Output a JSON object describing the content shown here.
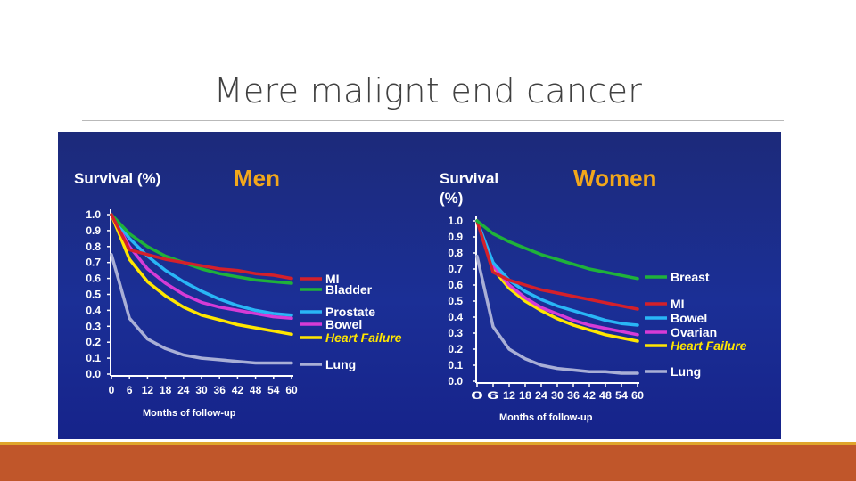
{
  "slide": {
    "title": "Mere malignt end cancer"
  },
  "colors": {
    "figure_bg": "#1b2a8a",
    "text": "#ffffff",
    "title_men": "#f2a71b",
    "footer": "#c0562a",
    "footer_accent": "#e0a52c"
  },
  "chart_data": [
    {
      "type": "line",
      "title": "Men",
      "ylabel": "Survival (%)",
      "xlabel": "Months of follow-up",
      "xlim": [
        0,
        60
      ],
      "ylim": [
        0,
        1.0
      ],
      "x_ticks": [
        "0",
        "6",
        "12",
        "18",
        "24",
        "30",
        "36",
        "42",
        "48",
        "54",
        "60"
      ],
      "y_ticks": [
        "1.0",
        "0.9",
        "0.8",
        "0.7",
        "0.6",
        "0.5",
        "0.4",
        "0.3",
        "0.2",
        "0.1",
        "0.0"
      ],
      "x": [
        0,
        6,
        12,
        18,
        24,
        30,
        36,
        42,
        48,
        54,
        60
      ],
      "series": [
        {
          "name": "MI",
          "color": "#d4202a",
          "values": [
            1.0,
            0.78,
            0.75,
            0.72,
            0.7,
            0.68,
            0.66,
            0.65,
            0.63,
            0.62,
            0.6
          ]
        },
        {
          "name": "Bladder",
          "color": "#1fb23a",
          "values": [
            1.0,
            0.88,
            0.8,
            0.74,
            0.7,
            0.66,
            0.63,
            0.61,
            0.59,
            0.58,
            0.57
          ]
        },
        {
          "name": "Prostate",
          "color": "#29b6f6",
          "values": [
            1.0,
            0.85,
            0.74,
            0.65,
            0.58,
            0.52,
            0.47,
            0.43,
            0.4,
            0.38,
            0.37
          ]
        },
        {
          "name": "Bowel",
          "color": "#d63bd6",
          "values": [
            1.0,
            0.8,
            0.66,
            0.57,
            0.5,
            0.45,
            0.42,
            0.4,
            0.38,
            0.36,
            0.35
          ]
        },
        {
          "name": "Heart Failure",
          "color": "#ffe600",
          "values": [
            1.0,
            0.72,
            0.58,
            0.49,
            0.42,
            0.37,
            0.34,
            0.31,
            0.29,
            0.27,
            0.25
          ]
        },
        {
          "name": "Lung",
          "color": "#a9afd6",
          "values": [
            0.75,
            0.35,
            0.22,
            0.16,
            0.12,
            0.1,
            0.09,
            0.08,
            0.07,
            0.07,
            0.07
          ]
        }
      ],
      "legend_emphasis": [
        "Heart Failure"
      ],
      "legend_placement": "right"
    },
    {
      "type": "line",
      "title": "Women",
      "ylabel": "Survival\n(%)",
      "xlabel": "Months of follow-up",
      "xlim": [
        0,
        60
      ],
      "ylim": [
        0,
        1.0
      ],
      "x_ticks": [
        "0",
        "6",
        "12",
        "18",
        "24",
        "30",
        "36",
        "42",
        "48",
        "54",
        "60"
      ],
      "x_tick_text": "0  6  121824303642485460",
      "y_ticks": [
        "1.0",
        "0.9",
        "0.8",
        "0.7",
        "0.6",
        "0.5",
        "0.4",
        "0.3",
        "0.2",
        "0.1",
        "0.0"
      ],
      "x": [
        0,
        6,
        12,
        18,
        24,
        30,
        36,
        42,
        48,
        54,
        60
      ],
      "series": [
        {
          "name": "Breast",
          "color": "#1fb23a",
          "values": [
            1.0,
            0.92,
            0.87,
            0.83,
            0.79,
            0.76,
            0.73,
            0.7,
            0.68,
            0.66,
            0.64
          ]
        },
        {
          "name": "MI",
          "color": "#d4202a",
          "values": [
            1.0,
            0.68,
            0.63,
            0.6,
            0.57,
            0.55,
            0.53,
            0.51,
            0.49,
            0.47,
            0.45
          ]
        },
        {
          "name": "Bowel",
          "color": "#29b6f6",
          "values": [
            1.0,
            0.74,
            0.63,
            0.56,
            0.51,
            0.47,
            0.44,
            0.41,
            0.38,
            0.36,
            0.35
          ]
        },
        {
          "name": "Ovarian",
          "color": "#d63bd6",
          "values": [
            1.0,
            0.72,
            0.6,
            0.52,
            0.46,
            0.42,
            0.38,
            0.35,
            0.33,
            0.31,
            0.29
          ]
        },
        {
          "name": "Heart Failure",
          "color": "#ffe600",
          "values": [
            1.0,
            0.7,
            0.58,
            0.5,
            0.44,
            0.39,
            0.35,
            0.32,
            0.29,
            0.27,
            0.25
          ]
        },
        {
          "name": "Lung",
          "color": "#a9afd6",
          "values": [
            0.78,
            0.34,
            0.2,
            0.14,
            0.1,
            0.08,
            0.07,
            0.06,
            0.06,
            0.05,
            0.05
          ]
        }
      ],
      "legend_emphasis": [
        "Heart Failure"
      ],
      "legend_placement": "right"
    }
  ]
}
